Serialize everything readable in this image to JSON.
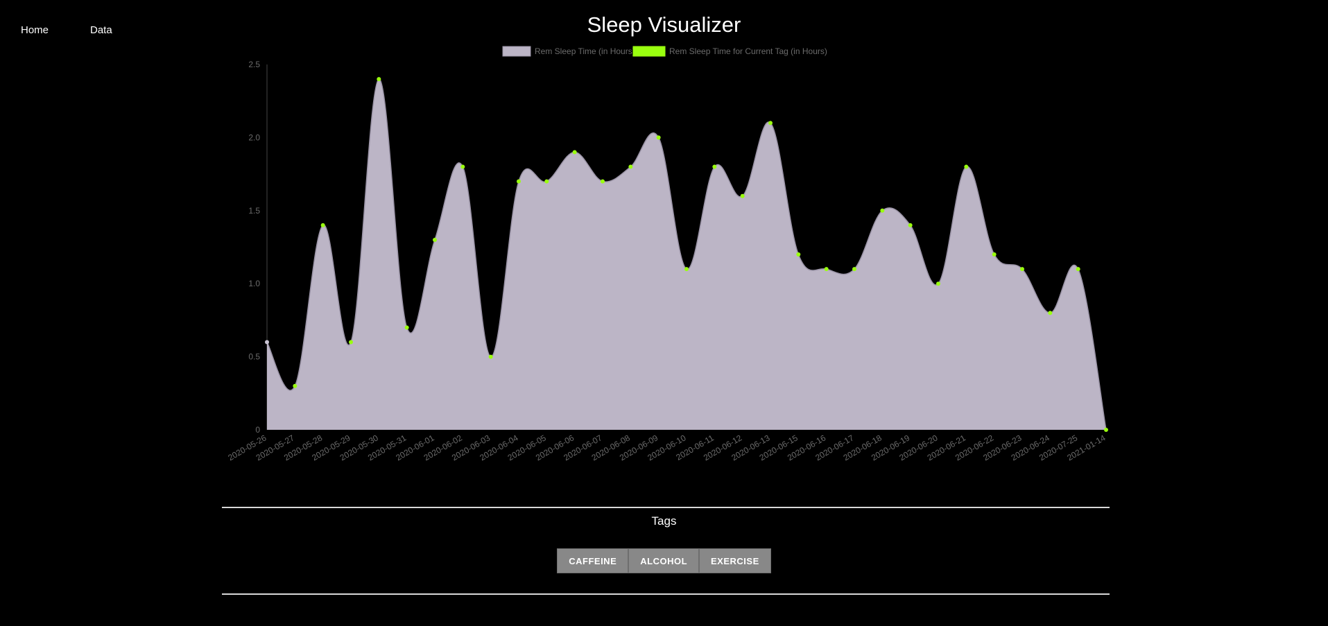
{
  "nav": {
    "home_label": "Home",
    "data_label": "Data"
  },
  "page": {
    "title": "Sleep Visualizer"
  },
  "tags": {
    "heading": "Tags",
    "buttons": [
      "CAFFEINE",
      "ALCOHOL",
      "EXERCISE"
    ]
  },
  "colors": {
    "area_fill": "#bcb5c6",
    "area_line": "#9a93a6",
    "point_tag": "#9aff0f",
    "point_default": "#c9c3d2",
    "tick_text": "#6b6b6b",
    "legend_text": "#6b6b6b"
  },
  "chart_data": {
    "type": "area",
    "title": "",
    "xlabel": "",
    "ylabel": "",
    "ylim": [
      0,
      2.5
    ],
    "yticks": [
      "0",
      "0.5",
      "1.0",
      "1.5",
      "2.0",
      "2.5"
    ],
    "ytick_values": [
      0,
      0.5,
      1.0,
      1.5,
      2.0,
      2.5
    ],
    "grid": false,
    "legend_position": "top",
    "categories": [
      "2020-05-26",
      "2020-05-27",
      "2020-05-28",
      "2020-05-29",
      "2020-05-30",
      "2020-05-31",
      "2020-06-01",
      "2020-06-02",
      "2020-06-03",
      "2020-06-04",
      "2020-06-05",
      "2020-06-06",
      "2020-06-07",
      "2020-06-08",
      "2020-06-09",
      "2020-06-10",
      "2020-06-11",
      "2020-06-12",
      "2020-06-13",
      "2020-06-15",
      "2020-06-16",
      "2020-06-17",
      "2020-06-18",
      "2020-06-19",
      "2020-06-20",
      "2020-06-21",
      "2020-06-22",
      "2020-06-23",
      "2020-06-24",
      "2020-07-25",
      "2021-01-14"
    ],
    "series": [
      {
        "name": "Rem Sleep Time (in Hours)",
        "values": [
          0.6,
          0.3,
          1.4,
          0.6,
          2.4,
          0.7,
          1.3,
          1.8,
          0.5,
          1.7,
          1.7,
          1.9,
          1.7,
          1.8,
          2.0,
          1.1,
          1.8,
          1.6,
          2.1,
          1.2,
          1.1,
          1.1,
          1.5,
          1.4,
          1.0,
          1.8,
          1.2,
          1.1,
          0.8,
          1.1,
          0.0
        ]
      },
      {
        "name": "Rem Sleep Time for Current Tag (in Hours)",
        "values": [
          null,
          0.3,
          1.4,
          0.6,
          2.4,
          0.7,
          1.3,
          1.8,
          0.5,
          1.7,
          1.7,
          1.9,
          1.7,
          1.8,
          2.0,
          1.1,
          1.8,
          1.6,
          2.1,
          1.2,
          1.1,
          1.1,
          1.5,
          1.4,
          1.0,
          1.8,
          1.2,
          1.1,
          0.8,
          1.1,
          0.0
        ]
      }
    ]
  }
}
